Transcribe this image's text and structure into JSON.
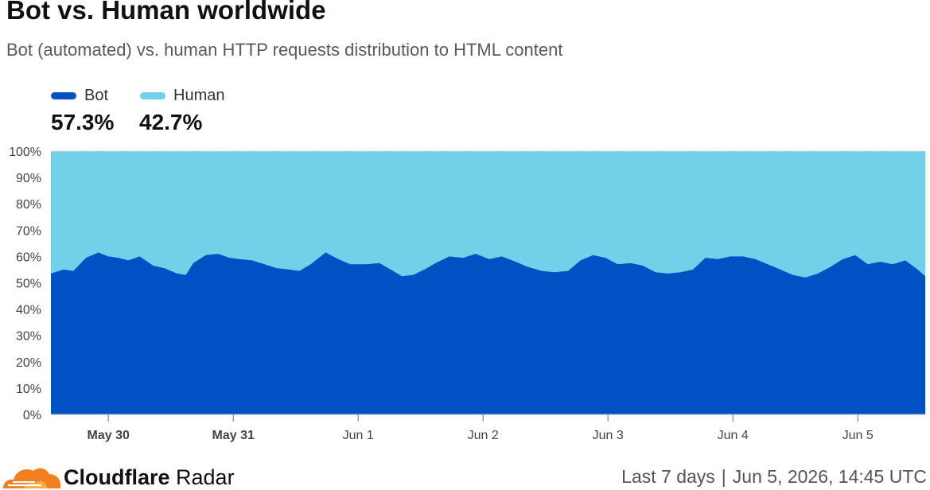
{
  "header": {
    "title": "Bot vs. Human worldwide",
    "subtitle": "Bot (automated) vs. human HTTP requests distribution to HTML content"
  },
  "legend": [
    {
      "label": "Bot",
      "value": "57.3%",
      "color": "#0051c3"
    },
    {
      "label": "Human",
      "value": "42.7%",
      "color": "#72d0e9"
    }
  ],
  "chart_data": {
    "type": "area",
    "stacked": true,
    "x_tick_labels": [
      "May 30",
      "May 31",
      "Jun 1",
      "Jun 2",
      "Jun 3",
      "Jun 4",
      "Jun 5"
    ],
    "x_tick_bold": [
      true,
      true,
      false,
      false,
      false,
      false,
      false
    ],
    "y_tick_labels": [
      "0%",
      "10%",
      "20%",
      "30%",
      "40%",
      "50%",
      "60%",
      "70%",
      "80%",
      "90%",
      "100%"
    ],
    "ylim": [
      0,
      100
    ],
    "x_range_days": [
      -0.46,
      6.54
    ],
    "series": [
      {
        "name": "Bot",
        "color": "#0051c3",
        "x": [
          -0.46,
          -0.36,
          -0.28,
          -0.18,
          -0.08,
          0.0,
          0.08,
          0.16,
          0.25,
          0.36,
          0.45,
          0.55,
          0.62,
          0.68,
          0.78,
          0.88,
          0.97,
          1.05,
          1.15,
          1.25,
          1.35,
          1.45,
          1.53,
          1.62,
          1.74,
          1.84,
          1.94,
          2.06,
          2.17,
          2.26,
          2.35,
          2.44,
          2.53,
          2.62,
          2.73,
          2.84,
          2.94,
          3.05,
          3.15,
          3.26,
          3.36,
          3.47,
          3.57,
          3.68,
          3.78,
          3.88,
          3.98,
          4.08,
          4.18,
          4.28,
          4.38,
          4.48,
          4.58,
          4.68,
          4.78,
          4.88,
          4.98,
          5.08,
          5.18,
          5.28,
          5.38,
          5.48,
          5.58,
          5.68,
          5.78,
          5.88,
          5.98,
          6.08,
          6.18,
          6.28,
          6.38,
          6.48,
          6.54
        ],
        "values": [
          53.5,
          55,
          54.5,
          59.5,
          61.5,
          60,
          59.5,
          58.5,
          60,
          56.5,
          55.5,
          53.5,
          53,
          57.5,
          60.5,
          61,
          59.5,
          59,
          58.5,
          57,
          55.5,
          55,
          54.5,
          57,
          61.5,
          59,
          57,
          57,
          57.5,
          55,
          52.5,
          53,
          55,
          57.5,
          60,
          59.5,
          61,
          59,
          60,
          58,
          56,
          54.5,
          54,
          54.5,
          58.5,
          60.5,
          59.5,
          57,
          57.5,
          56.5,
          54,
          53.5,
          54,
          55,
          59.5,
          59,
          60,
          60,
          59,
          57,
          55,
          53,
          52,
          53.5,
          56,
          59,
          60.5,
          57,
          58,
          57,
          58.5,
          55,
          52.5
        ]
      },
      {
        "name": "Human",
        "color": "#72d0e9",
        "values_note_free": true
      }
    ]
  },
  "footer": {
    "brand_strong": "Cloudflare",
    "brand_rest": "Radar",
    "period": "Last 7 days",
    "separator": "|",
    "timestamp": "Jun 5, 2026, 14:45 UTC"
  }
}
